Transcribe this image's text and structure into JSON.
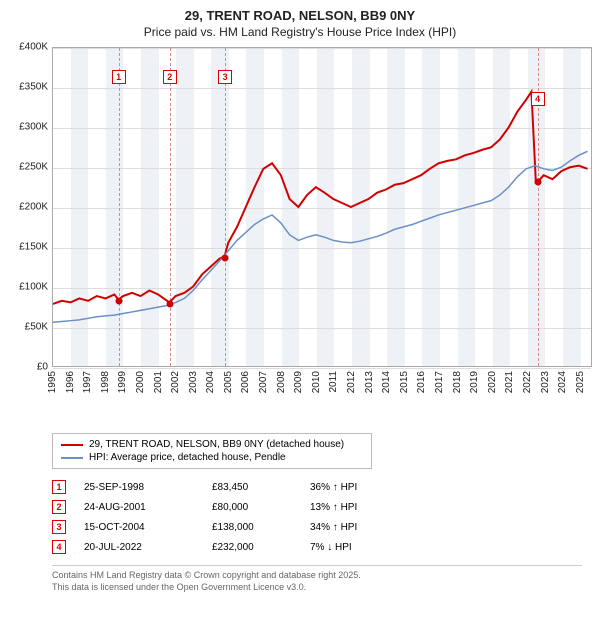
{
  "title_line1": "29, TRENT ROAD, NELSON, BB9 0NY",
  "title_line2": "Price paid vs. HM Land Registry's House Price Index (HPI)",
  "chart": {
    "type": "line",
    "x_start_year": 1995,
    "x_end_year": 2025.7,
    "y_min": 0,
    "y_max": 400000,
    "y_tick_step": 50000,
    "y_tick_labels": [
      "£0",
      "£50K",
      "£100K",
      "£150K",
      "£200K",
      "£250K",
      "£300K",
      "£350K",
      "£400K"
    ],
    "x_tick_years": [
      1995,
      1996,
      1997,
      1998,
      1999,
      2000,
      2001,
      2002,
      2003,
      2004,
      2005,
      2006,
      2007,
      2008,
      2009,
      2010,
      2011,
      2012,
      2013,
      2014,
      2015,
      2016,
      2017,
      2018,
      2019,
      2020,
      2021,
      2022,
      2023,
      2024,
      2025
    ],
    "band_color": "#eef2f7",
    "grid_color": "#dddddd",
    "series": [
      {
        "name": "29, TRENT ROAD, NELSON, BB9 0NY (detached house)",
        "color": "#d00000",
        "width": 2,
        "points": [
          [
            1995,
            78
          ],
          [
            1995.5,
            82
          ],
          [
            1996,
            80
          ],
          [
            1996.5,
            85
          ],
          [
            1997,
            82
          ],
          [
            1997.5,
            88
          ],
          [
            1998,
            85
          ],
          [
            1998.5,
            90
          ],
          [
            1998.73,
            83.45
          ],
          [
            1999,
            88
          ],
          [
            1999.5,
            92
          ],
          [
            2000,
            88
          ],
          [
            2000.5,
            95
          ],
          [
            2001,
            90
          ],
          [
            2001.64,
            80
          ],
          [
            2002,
            88
          ],
          [
            2002.5,
            92
          ],
          [
            2003,
            100
          ],
          [
            2003.5,
            115
          ],
          [
            2004,
            125
          ],
          [
            2004.5,
            135
          ],
          [
            2004.79,
            138
          ],
          [
            2005,
            155
          ],
          [
            2005.5,
            175
          ],
          [
            2006,
            200
          ],
          [
            2006.5,
            225
          ],
          [
            2007,
            248
          ],
          [
            2007.5,
            255
          ],
          [
            2008,
            240
          ],
          [
            2008.5,
            210
          ],
          [
            2009,
            200
          ],
          [
            2009.5,
            215
          ],
          [
            2010,
            225
          ],
          [
            2010.5,
            218
          ],
          [
            2011,
            210
          ],
          [
            2011.5,
            205
          ],
          [
            2012,
            200
          ],
          [
            2012.5,
            205
          ],
          [
            2013,
            210
          ],
          [
            2013.5,
            218
          ],
          [
            2014,
            222
          ],
          [
            2014.5,
            228
          ],
          [
            2015,
            230
          ],
          [
            2015.5,
            235
          ],
          [
            2016,
            240
          ],
          [
            2016.5,
            248
          ],
          [
            2017,
            255
          ],
          [
            2017.5,
            258
          ],
          [
            2018,
            260
          ],
          [
            2018.5,
            265
          ],
          [
            2019,
            268
          ],
          [
            2019.5,
            272
          ],
          [
            2020,
            275
          ],
          [
            2020.5,
            285
          ],
          [
            2021,
            300
          ],
          [
            2021.5,
            320
          ],
          [
            2022,
            335
          ],
          [
            2022.3,
            345
          ],
          [
            2022.55,
            232
          ],
          [
            2022.8,
            235
          ],
          [
            2023,
            240
          ],
          [
            2023.5,
            235
          ],
          [
            2024,
            245
          ],
          [
            2024.5,
            250
          ],
          [
            2025,
            252
          ],
          [
            2025.5,
            248
          ]
        ]
      },
      {
        "name": "HPI: Average price, detached house, Pendle",
        "color": "#6b8fc7",
        "width": 1.5,
        "points": [
          [
            1995,
            55
          ],
          [
            1995.5,
            56
          ],
          [
            1996,
            57
          ],
          [
            1996.5,
            58
          ],
          [
            1997,
            60
          ],
          [
            1997.5,
            62
          ],
          [
            1998,
            63
          ],
          [
            1998.5,
            64
          ],
          [
            1999,
            66
          ],
          [
            1999.5,
            68
          ],
          [
            2000,
            70
          ],
          [
            2000.5,
            72
          ],
          [
            2001,
            74
          ],
          [
            2001.5,
            76
          ],
          [
            2002,
            80
          ],
          [
            2002.5,
            85
          ],
          [
            2003,
            95
          ],
          [
            2003.5,
            108
          ],
          [
            2004,
            120
          ],
          [
            2004.5,
            132
          ],
          [
            2005,
            145
          ],
          [
            2005.5,
            158
          ],
          [
            2006,
            168
          ],
          [
            2006.5,
            178
          ],
          [
            2007,
            185
          ],
          [
            2007.5,
            190
          ],
          [
            2008,
            180
          ],
          [
            2008.5,
            165
          ],
          [
            2009,
            158
          ],
          [
            2009.5,
            162
          ],
          [
            2010,
            165
          ],
          [
            2010.5,
            162
          ],
          [
            2011,
            158
          ],
          [
            2011.5,
            156
          ],
          [
            2012,
            155
          ],
          [
            2012.5,
            157
          ],
          [
            2013,
            160
          ],
          [
            2013.5,
            163
          ],
          [
            2014,
            167
          ],
          [
            2014.5,
            172
          ],
          [
            2015,
            175
          ],
          [
            2015.5,
            178
          ],
          [
            2016,
            182
          ],
          [
            2016.5,
            186
          ],
          [
            2017,
            190
          ],
          [
            2017.5,
            193
          ],
          [
            2018,
            196
          ],
          [
            2018.5,
            199
          ],
          [
            2019,
            202
          ],
          [
            2019.5,
            205
          ],
          [
            2020,
            208
          ],
          [
            2020.5,
            215
          ],
          [
            2021,
            225
          ],
          [
            2021.5,
            238
          ],
          [
            2022,
            248
          ],
          [
            2022.5,
            252
          ],
          [
            2023,
            248
          ],
          [
            2023.5,
            246
          ],
          [
            2024,
            250
          ],
          [
            2024.5,
            258
          ],
          [
            2025,
            265
          ],
          [
            2025.5,
            270
          ]
        ]
      }
    ],
    "sale_markers": [
      {
        "n": "1",
        "year": 1998.73,
        "value": 83.45
      },
      {
        "n": "2",
        "year": 2001.64,
        "value": 80
      },
      {
        "n": "3",
        "year": 2004.79,
        "value": 138
      },
      {
        "n": "4",
        "year": 2022.55,
        "value": 232
      }
    ]
  },
  "legend": [
    {
      "color": "#d00000",
      "label": "29, TRENT ROAD, NELSON, BB9 0NY (detached house)"
    },
    {
      "color": "#6b8fc7",
      "label": "HPI: Average price, detached house, Pendle"
    }
  ],
  "sales": [
    {
      "n": "1",
      "date": "25-SEP-1998",
      "price": "£83,450",
      "pct": "36% ↑ HPI"
    },
    {
      "n": "2",
      "date": "24-AUG-2001",
      "price": "£80,000",
      "pct": "13% ↑ HPI"
    },
    {
      "n": "3",
      "date": "15-OCT-2004",
      "price": "£138,000",
      "pct": "34% ↑ HPI"
    },
    {
      "n": "4",
      "date": "20-JUL-2022",
      "price": "£232,000",
      "pct": "7% ↓ HPI"
    }
  ],
  "footer_line1": "Contains HM Land Registry data © Crown copyright and database right 2025.",
  "footer_line2": "This data is licensed under the Open Government Licence v3.0."
}
